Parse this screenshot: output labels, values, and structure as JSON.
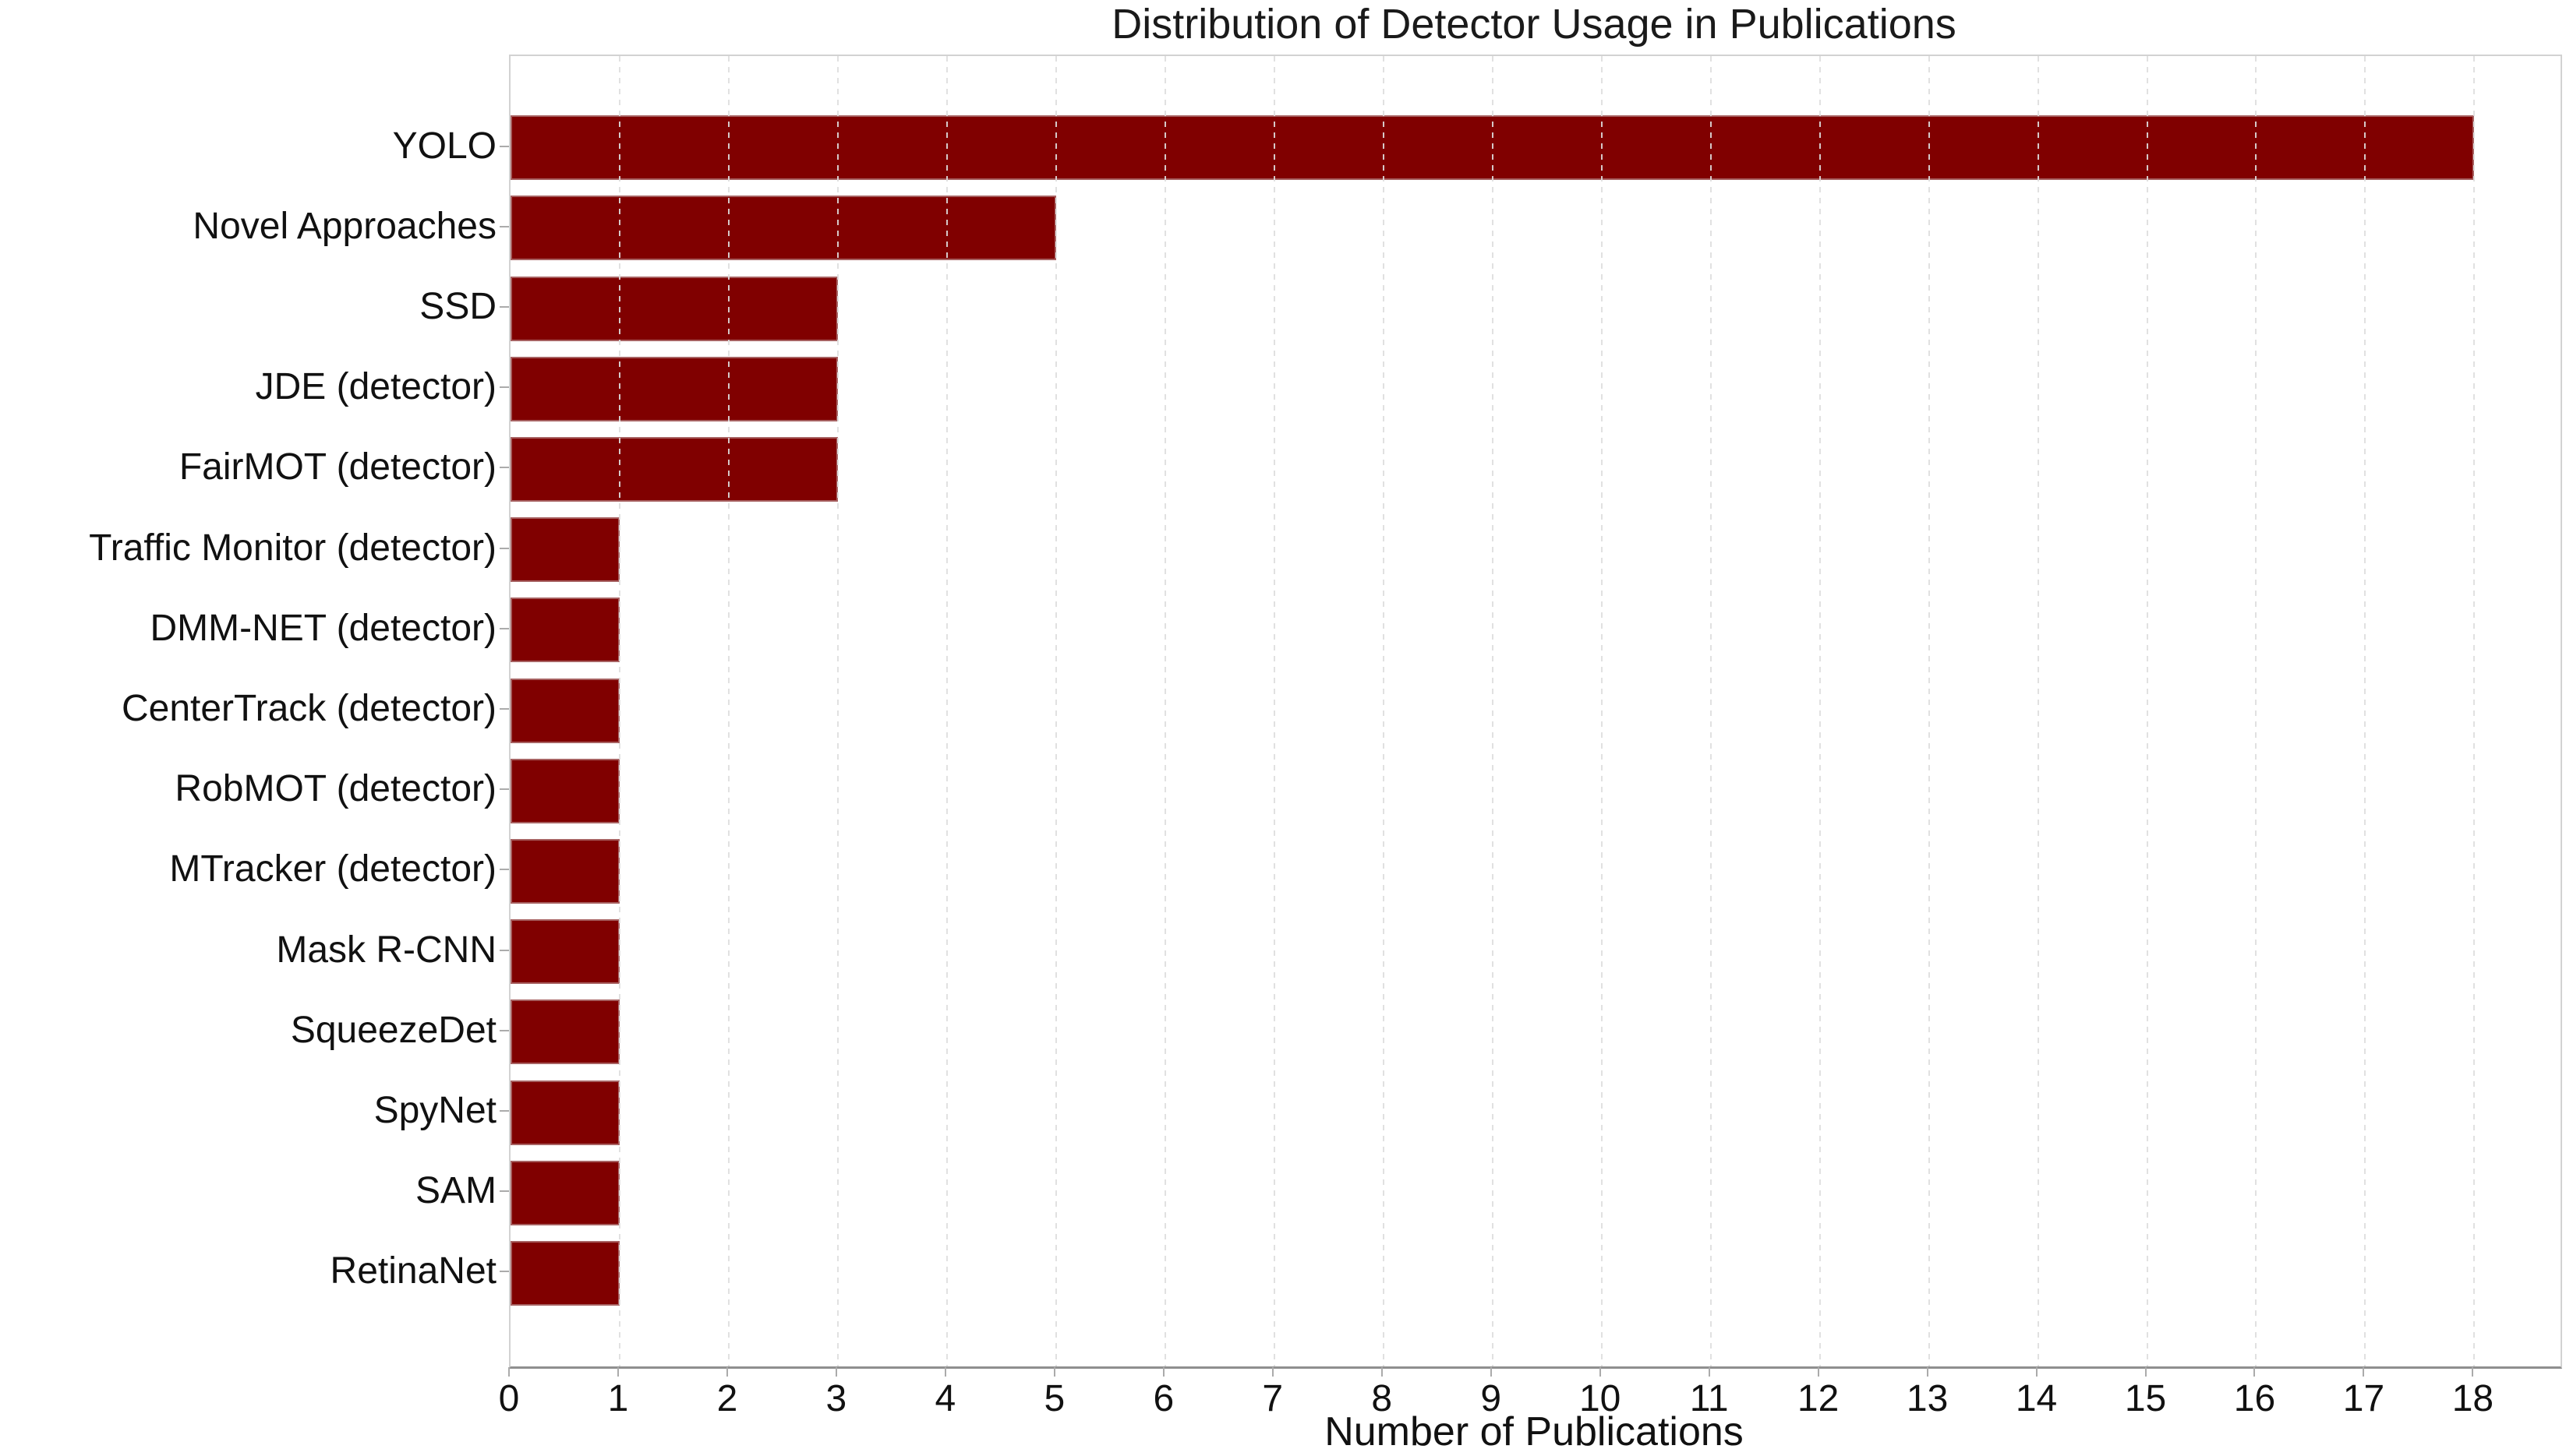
{
  "chart_data": {
    "type": "bar",
    "orientation": "horizontal",
    "title": "Distribution of Detector Usage in Publications",
    "xlabel": "Number of Publications",
    "ylabel": "",
    "categories": [
      "YOLO",
      "Novel Approaches",
      "SSD",
      "JDE (detector)",
      "FairMOT (detector)",
      "Traffic Monitor (detector)",
      "DMM-NET (detector)",
      "CenterTrack (detector)",
      "RobMOT (detector)",
      "MTracker (detector)",
      "Mask R-CNN",
      "SqueezeDet",
      "SpyNet",
      "SAM",
      "RetinaNet"
    ],
    "values": [
      18,
      5,
      3,
      3,
      3,
      1,
      1,
      1,
      1,
      1,
      1,
      1,
      1,
      1,
      1
    ],
    "xticks": [
      0,
      1,
      2,
      3,
      4,
      5,
      6,
      7,
      8,
      9,
      10,
      11,
      12,
      13,
      14,
      15,
      16,
      17,
      18
    ],
    "xlim": [
      0,
      18.79
    ],
    "grid": "vertical-dashed",
    "legend": "none",
    "colors": {
      "bar": "#800000",
      "grid": "#dedede",
      "spine": "#d2d2d2",
      "axis_line": "#8f8f8f",
      "tick": "#ababab",
      "text": "#1a1a1a"
    }
  }
}
